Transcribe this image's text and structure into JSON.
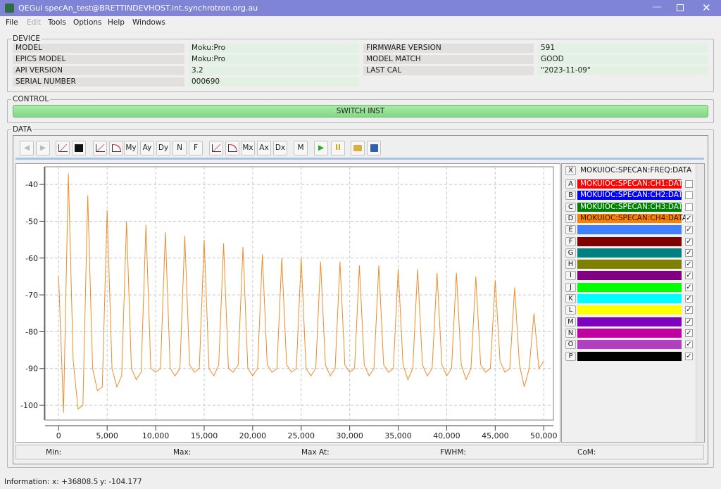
{
  "window": {
    "title": "QEGui specAn_test@BRETTINDEVHOST.int.synchrotron.org.au"
  },
  "menu": [
    "File",
    "Edit",
    "Tools",
    "Options",
    "Help",
    "Windows"
  ],
  "device": {
    "title": "DEVICE",
    "rows": [
      [
        "MODEL",
        "Moku:Pro",
        "FIRMWARE VERSION",
        "591"
      ],
      [
        "EPICS MODEL",
        "Moku:Pro",
        "MODEL MATCH",
        "GOOD"
      ],
      [
        "API VERSION",
        "3.2",
        "LAST CAL",
        "\"2023-11-09\""
      ],
      [
        "SERIAL NUMBER",
        "000690"
      ]
    ]
  },
  "control": {
    "title": "CONTROL",
    "button": "SWITCH INST"
  },
  "data": {
    "title": "DATA",
    "toolbar": [
      "My",
      "Ay",
      "Dy",
      "N",
      "F",
      "Mx",
      "Ax",
      "Dx",
      "M"
    ]
  },
  "chart_data": {
    "type": "line",
    "grid": true,
    "x": [
      0,
      500,
      1000,
      1500,
      2000,
      2500,
      3000,
      3500,
      4000,
      4500,
      5000,
      5500,
      6000,
      6500,
      7000,
      7500,
      8000,
      8500,
      9000,
      9500,
      10000,
      10500,
      11000,
      11500,
      12000,
      12500,
      13000,
      13500,
      14000,
      14500,
      15000,
      15500,
      16000,
      16500,
      17000,
      17500,
      18000,
      18500,
      19000,
      19500,
      20000,
      20500,
      21000,
      21500,
      22000,
      22500,
      23000,
      23500,
      24000,
      24500,
      25000,
      25500,
      26000,
      26500,
      27000,
      27500,
      28000,
      28500,
      29000,
      29500,
      30000,
      30500,
      31000,
      31500,
      32000,
      32500,
      33000,
      33500,
      34000,
      34500,
      35000,
      35500,
      36000,
      36500,
      37000,
      37500,
      38000,
      38500,
      39000,
      39500,
      40000,
      40500,
      41000,
      41500,
      42000,
      42500,
      43000,
      43500,
      44000,
      44500,
      45000,
      45500,
      46000,
      46500,
      47000,
      47500,
      48000,
      48500,
      49000,
      49500,
      50000
    ],
    "series": [
      {
        "color": "#f08c28",
        "values": [
          -65,
          -102,
          -37,
          -88,
          -101,
          -100,
          -43,
          -90,
          -96,
          -95,
          -47,
          -90,
          -95,
          -92,
          -50,
          -90,
          -93,
          -91,
          -51,
          -90,
          -91,
          -90,
          -53,
          -90,
          -92,
          -90,
          -54,
          -89,
          -91,
          -90,
          -55,
          -90,
          -92,
          -89,
          -56,
          -90,
          -91,
          -89,
          -57,
          -90,
          -92,
          -90,
          -59,
          -89,
          -91,
          -90,
          -60,
          -89,
          -91,
          -90,
          -60,
          -90,
          -92,
          -90,
          -61,
          -89,
          -92,
          -90,
          -61,
          -89,
          -91,
          -90,
          -62,
          -89,
          -92,
          -90,
          -62,
          -89,
          -91,
          -90,
          -63,
          -89,
          -93,
          -90,
          -63,
          -89,
          -92,
          -90,
          -64,
          -89,
          -92,
          -90,
          -64,
          -89,
          -93,
          -90,
          -65,
          -89,
          -91,
          -90,
          -66,
          -88,
          -91,
          -90,
          -68,
          -89,
          -95,
          -90,
          -75,
          -90,
          -88
        ]
      }
    ],
    "xlim": [
      -1400,
      51000
    ],
    "ylim": [
      -104,
      -35.2
    ],
    "xticks": [
      0,
      {
        "value": 5000,
        "label": "5,000"
      },
      {
        "value": 10000,
        "label": "10,000"
      },
      {
        "value": 15000,
        "label": "15,000"
      },
      {
        "value": 20000,
        "label": "20,000"
      },
      {
        "value": 25000,
        "label": "25,000"
      },
      {
        "value": 30000,
        "label": "30,000"
      },
      {
        "value": 35000,
        "label": "35,000"
      },
      {
        "value": 40000,
        "label": "40,000"
      },
      {
        "value": 45000,
        "label": "45,000"
      },
      {
        "value": 50000,
        "label": "50,000"
      }
    ],
    "yticks": [
      -100,
      -90,
      -80,
      -70,
      -60,
      -50,
      -40
    ]
  },
  "channels": {
    "x": {
      "letter": "X",
      "label": "MOKUIOC:SPECAN:FREQ:DATA"
    },
    "rows": [
      {
        "letter": "A",
        "label": "MOKUIOC:SPECAN:CH1:DATA",
        "color": "#ff0000",
        "text_color": "#ffffff",
        "checked": false
      },
      {
        "letter": "B",
        "label": "MOKUIOC:SPECAN:CH2:DATA",
        "color": "#0000ff",
        "text_color": "#ffffff",
        "checked": false
      },
      {
        "letter": "C",
        "label": "MOKUIOC:SPECAN:CH3:DATA",
        "color": "#008000",
        "text_color": "#ffffff",
        "checked": false
      },
      {
        "letter": "D",
        "label": "MOKUIOC:SPECAN:CH4:DATA",
        "color": "#ff8000",
        "text_color": "#202020",
        "checked": true
      },
      {
        "letter": "E",
        "color": "#4080ff",
        "checked": true
      },
      {
        "letter": "F",
        "color": "#800000",
        "checked": true
      },
      {
        "letter": "G",
        "color": "#008080",
        "checked": true
      },
      {
        "letter": "H",
        "color": "#808000",
        "checked": true
      },
      {
        "letter": "I",
        "color": "#800080",
        "checked": true
      },
      {
        "letter": "J",
        "color": "#00ff00",
        "checked": true
      },
      {
        "letter": "K",
        "color": "#00ffff",
        "checked": true
      },
      {
        "letter": "L",
        "color": "#ffff00",
        "checked": true
      },
      {
        "letter": "M",
        "color": "#8000c0",
        "checked": true
      },
      {
        "letter": "N",
        "color": "#c000a0",
        "checked": true
      },
      {
        "letter": "O",
        "color": "#b040c0",
        "checked": true
      },
      {
        "letter": "P",
        "color": "#000000",
        "checked": true
      }
    ]
  },
  "stats": [
    "Min:",
    "Max:",
    "Max At:",
    "FWHM:",
    "CoM:"
  ],
  "status": {
    "label": "Information:",
    "x": "x: +36808.5",
    "y": "y: -104.177"
  }
}
